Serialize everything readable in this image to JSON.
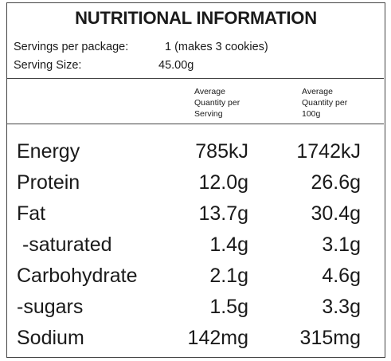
{
  "title": "NUTRITIONAL INFORMATION",
  "servings": {
    "per_package_label": "Servings per package:",
    "per_package_value": "1 (makes 3 cookies)",
    "size_label": "Serving Size:",
    "size_value": "45.00g"
  },
  "columns": {
    "per_serving": [
      "Average",
      "Quantity per",
      "Serving"
    ],
    "per_100g": [
      "Average",
      "Quantity per",
      "100g"
    ]
  },
  "rows": [
    {
      "name": "Energy",
      "per_serving": "785kJ",
      "per_100g": "1742kJ"
    },
    {
      "name": "Protein",
      "per_serving": "12.0g",
      "per_100g": "26.6g"
    },
    {
      "name": "Fat",
      "per_serving": "13.7g",
      "per_100g": "30.4g"
    },
    {
      "name": " -saturated",
      "per_serving": "1.4g",
      "per_100g": "3.1g"
    },
    {
      "name": "Carbohydrate",
      "per_serving": "2.1g",
      "per_100g": "4.6g"
    },
    {
      "name": "-sugars",
      "per_serving": "1.5g",
      "per_100g": "3.3g"
    },
    {
      "name": "Sodium",
      "per_serving": "142mg",
      "per_100g": "315mg"
    }
  ]
}
